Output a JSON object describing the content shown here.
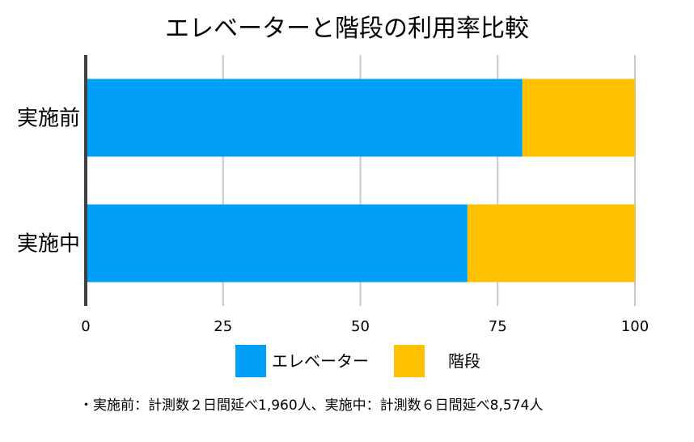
{
  "chart_data": {
    "type": "bar",
    "orientation": "horizontal",
    "stacked": true,
    "title": "エレベーターと階段の利用率比較",
    "categories": [
      "実施前",
      "実施中"
    ],
    "series": [
      {
        "name": "エレベーター",
        "color": "#00A0F8",
        "values": [
          79.5,
          69.5
        ]
      },
      {
        "name": "階段",
        "color": "#FFC000",
        "values": [
          20.5,
          30.5
        ]
      }
    ],
    "xlim": [
      0,
      100
    ],
    "xticks": [
      0,
      25,
      50,
      75,
      100
    ],
    "xtick_labels": [
      "0",
      "25",
      "50",
      "75",
      "100"
    ],
    "grid": true,
    "legend_position": "bottom"
  },
  "footnote": "・実施前：計測数２日間延べ1,960人、実施中：計測数６日間延べ8,574人"
}
